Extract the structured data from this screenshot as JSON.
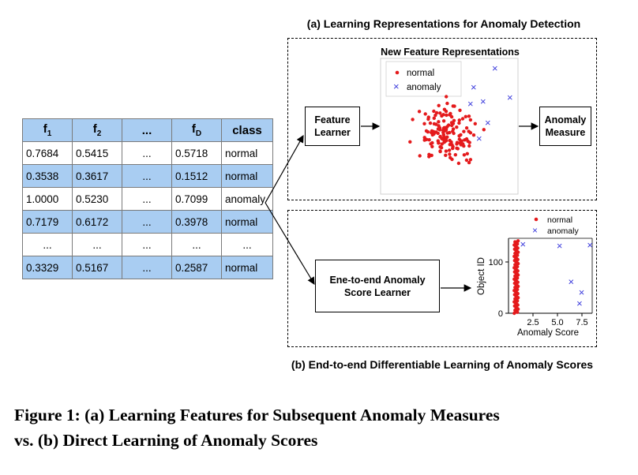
{
  "table": {
    "headers": [
      {
        "main": "f",
        "sub": "1"
      },
      {
        "main": "f",
        "sub": "2"
      },
      {
        "main": "...",
        "sub": ""
      },
      {
        "main": "f",
        "sub": "D"
      },
      {
        "main": "class",
        "sub": ""
      }
    ],
    "rows": [
      {
        "cells": [
          "0.7684",
          "0.5415",
          "...",
          "0.5718",
          "normal"
        ],
        "style": "white"
      },
      {
        "cells": [
          "0.3538",
          "0.3617",
          "...",
          "0.1512",
          "normal"
        ],
        "style": "blue"
      },
      {
        "cells": [
          "1.0000",
          "0.5230",
          "...",
          "0.7099",
          "anomaly"
        ],
        "style": "white"
      },
      {
        "cells": [
          "0.7179",
          "0.6172",
          "...",
          "0.3978",
          "normal"
        ],
        "style": "blue"
      },
      {
        "cells": [
          "...",
          "...",
          "...",
          "...",
          "..."
        ],
        "style": "white"
      },
      {
        "cells": [
          "0.3329",
          "0.5167",
          "...",
          "0.2587",
          "normal"
        ],
        "style": "blue"
      }
    ]
  },
  "panel_a": {
    "title": "(a) Learning Representations for Anomaly Detection",
    "plot_title": "New Feature Representations",
    "feature_learner": [
      "Feature",
      "Learner"
    ],
    "anomaly_measure": [
      "Anomaly",
      "Measure"
    ],
    "legend": {
      "normal": "normal",
      "anomaly": "anomaly"
    }
  },
  "panel_b": {
    "title": "(b) End-to-end Differentiable Learning of Anomaly Scores",
    "score_learner": [
      "Ene-to-end Anomaly",
      "Score Learner"
    ],
    "legend": {
      "normal": "normal",
      "anomaly": "anomaly"
    },
    "xlabel": "Anomaly Score",
    "ylabel": "Object ID",
    "xticks": [
      "2.5",
      "5.0",
      "7.5"
    ],
    "yticks": [
      "0",
      "100"
    ]
  },
  "caption": {
    "line1": "Figure 1: (a) Learning Features for Subsequent Anomaly Measures",
    "line2": "vs. (b) Direct Learning of Anomaly Scores"
  },
  "colors": {
    "normal": "#e41a1c",
    "anomaly": "#3b3bdc",
    "table_blue": "#a9cdf2"
  },
  "chart_data": [
    {
      "type": "scatter",
      "title": "New Feature Representations",
      "series": [
        {
          "name": "normal",
          "marker": "dot",
          "color": "#e41a1c"
        },
        {
          "name": "anomaly",
          "marker": "x",
          "color": "#3b3bdc"
        }
      ]
    },
    {
      "type": "scatter",
      "xlabel": "Anomaly Score",
      "ylabel": "Object ID",
      "xlim": [
        0,
        8
      ],
      "ylim": [
        0,
        145
      ],
      "xticks": [
        2.5,
        5.0,
        7.5
      ],
      "yticks": [
        0,
        100
      ],
      "series": [
        {
          "name": "normal",
          "color": "#e41a1c",
          "x_range": [
            0.1,
            0.5
          ],
          "y_range": [
            0,
            140
          ]
        },
        {
          "name": "anomaly",
          "color": "#3b3bdc",
          "points": [
            [
              1.4,
              133
            ],
            [
              4.9,
              130
            ],
            [
              7.8,
              131
            ],
            [
              6.0,
              60
            ],
            [
              7.0,
              40
            ],
            [
              6.8,
              18
            ]
          ]
        }
      ]
    }
  ]
}
